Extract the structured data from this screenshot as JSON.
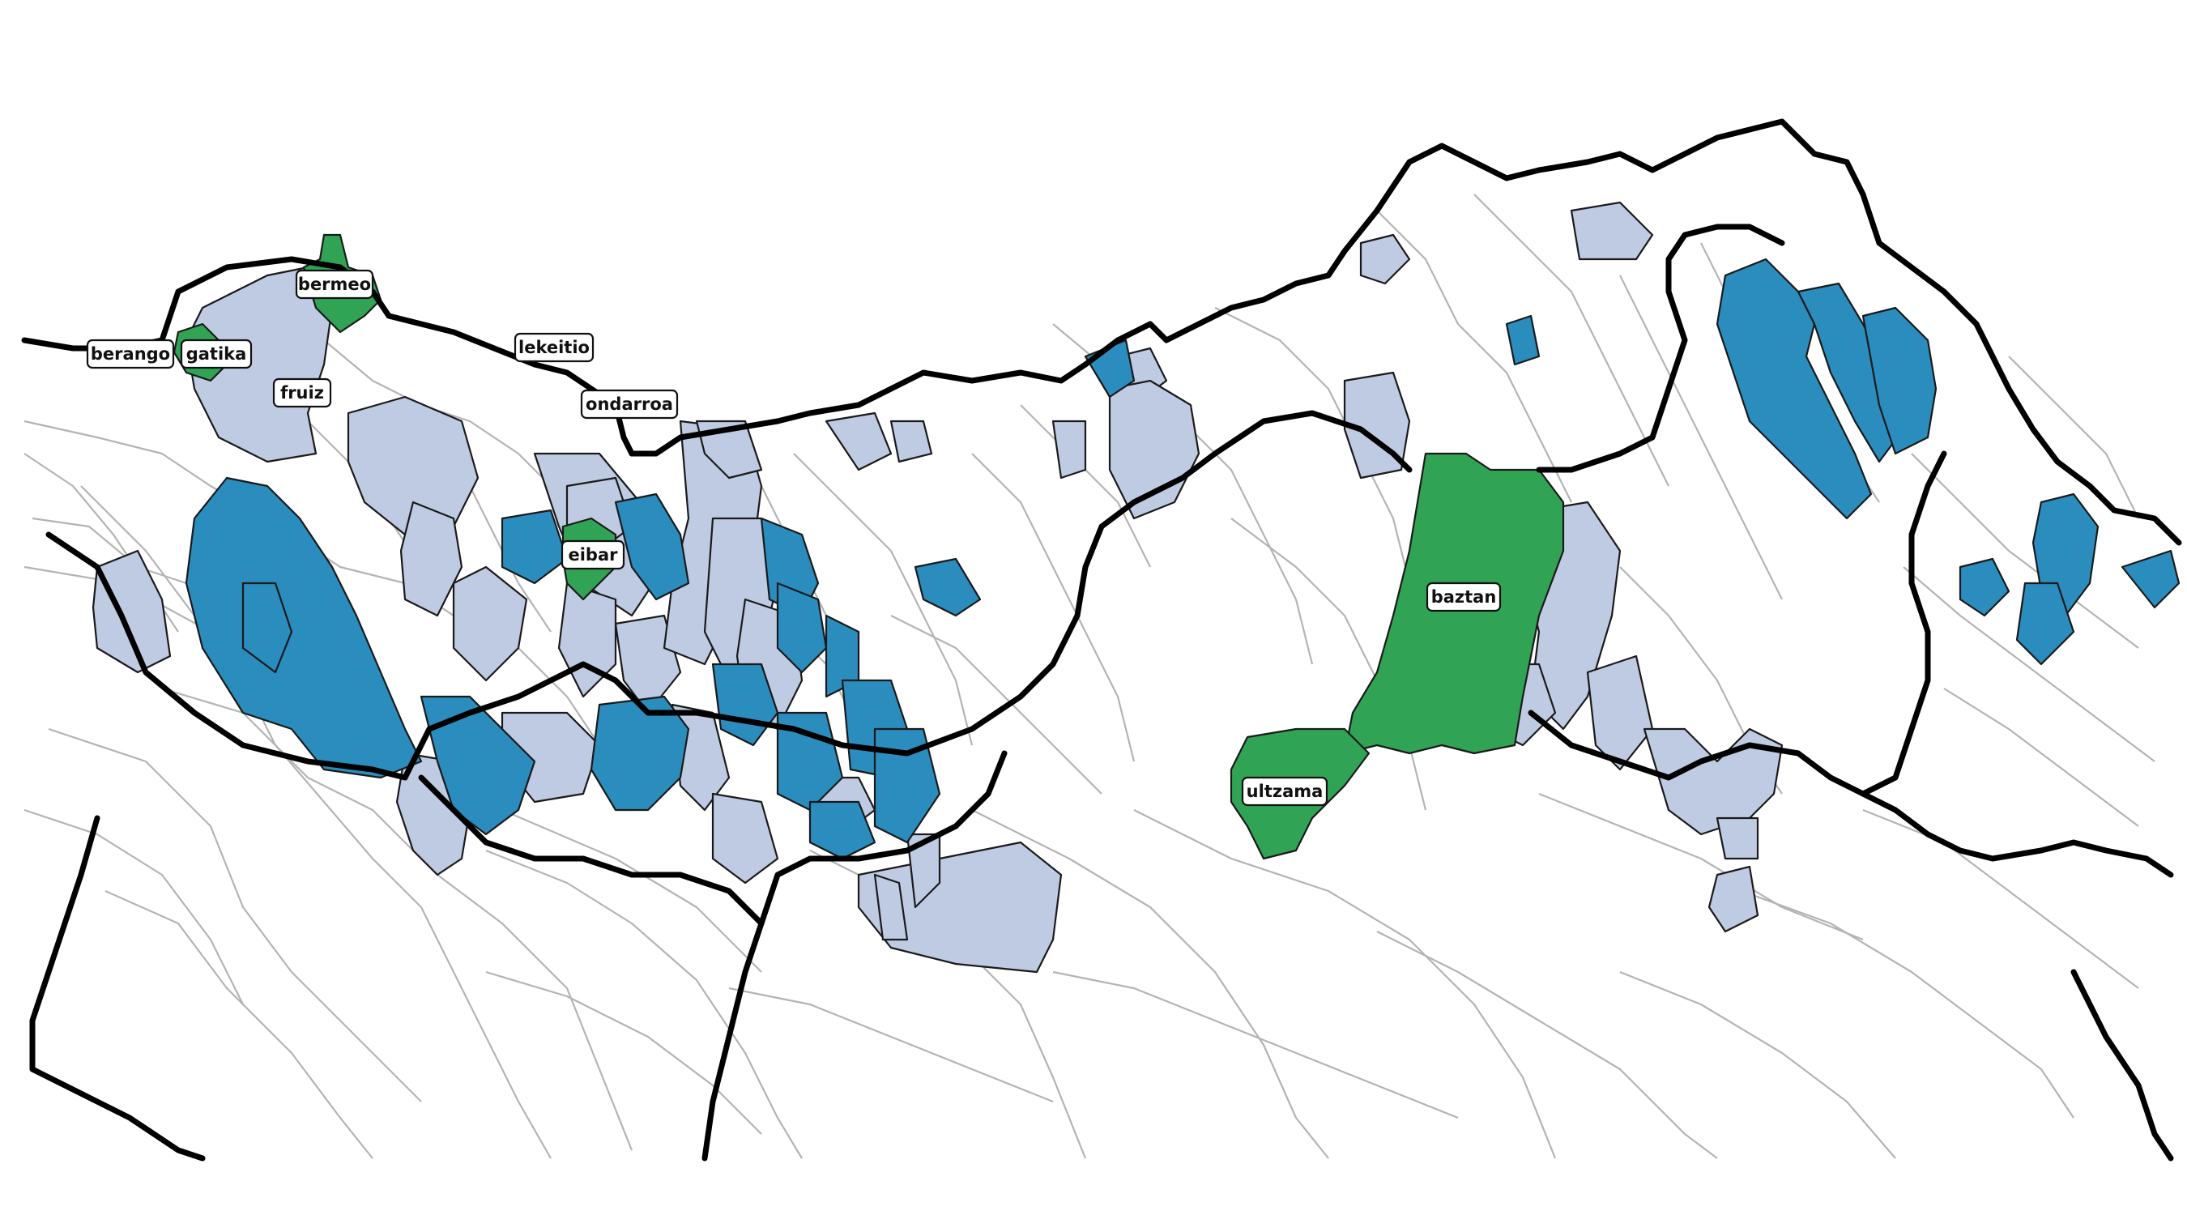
{
  "legend_colors": {
    "light": "#bfcbe3",
    "medium": "#2b8cbe",
    "highlight": "#31a354"
  },
  "labels": [
    {
      "id": "berango",
      "text": "berango"
    },
    {
      "id": "gatika",
      "text": "gatika"
    },
    {
      "id": "bermeo",
      "text": "bermeo"
    },
    {
      "id": "fruiz",
      "text": "fruiz"
    },
    {
      "id": "lekeitio",
      "text": "lekeitio"
    },
    {
      "id": "ondarroa",
      "text": "ondarroa"
    },
    {
      "id": "eibar",
      "text": "eibar"
    },
    {
      "id": "baztan",
      "text": "baztan"
    },
    {
      "id": "ultzama",
      "text": "ultzama"
    }
  ]
}
